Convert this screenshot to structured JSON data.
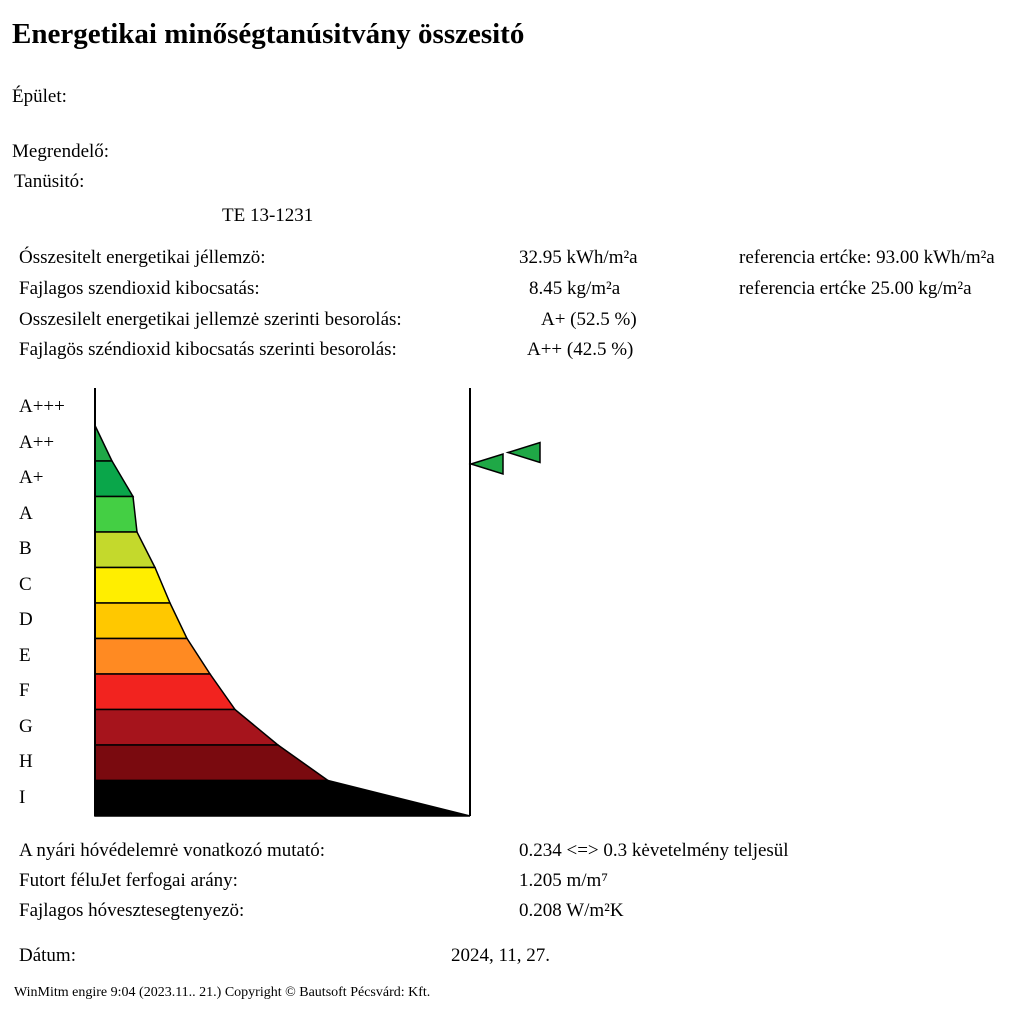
{
  "title": "Energetikai minőségtanúsitvány összesitó",
  "building_label": "Épület:",
  "client_label": "Megrendelő:",
  "certifier_label": "Tanüsitó:",
  "certifier_id": "TE 13-1231",
  "summary": {
    "rows": [
      {
        "label": "Ósszesitelt energetikai jéllemzö:",
        "value": "32.95 kWh/m²a",
        "reference": "referencia ertćke: 93.00 kWh/m²a"
      },
      {
        "label": "Fajlagos szendioxid kibocsatás:",
        "value": "8.45 kg/m²a",
        "reference": "referencia ertćke 25.00 kg/m²a"
      },
      {
        "label": "Osszesilelt energetikai jellemzė szerinti besorolás:",
        "value": "A+ (52.5 %)",
        "reference": ""
      },
      {
        "label": "Fajlagös széndioxid kibocsatás szerinti besorolás:",
        "value": "A++ (42.5 %)",
        "reference": ""
      }
    ]
  },
  "scale": {
    "grades": [
      "A+++",
      "A++",
      "A+",
      "A",
      "B",
      "C",
      "D",
      "E",
      "F",
      "G",
      "H",
      "I"
    ],
    "colors": [
      "#1fa846",
      "#1fa846",
      "#0aa64a",
      "#44cf44",
      "#c4d92c",
      "#ffee00",
      "#ffc800",
      "#ff8a22",
      "#f2231f",
      "#a6141c",
      "#7a0a0f",
      "#000000"
    ],
    "markers": [
      {
        "label": "energy_class",
        "grade": "A+"
      },
      {
        "label": "co2_class",
        "grade": "A++"
      }
    ],
    "marker_color": "#1fa846"
  },
  "extra": {
    "rows": [
      {
        "label": "A nyári hóvédelemrė vonatkozó mutató:",
        "value": "0.234 <=> 0.3 kėvetelmény teljesül"
      },
      {
        "label": "Futort féluJet ferfogai arány:",
        "value": "1.205 m/m⁷"
      },
      {
        "label": "Fajlagos hóvesztesegtenyezö:",
        "value": "0.208 W/m²K"
      }
    ]
  },
  "date_label": "Dátum:",
  "date_value": "2024, 11, 27.",
  "footer": "WinMitm engire 9:04 (2023.11.. 21.) Copyright © Bautsoft Pécsvárd: Kft."
}
